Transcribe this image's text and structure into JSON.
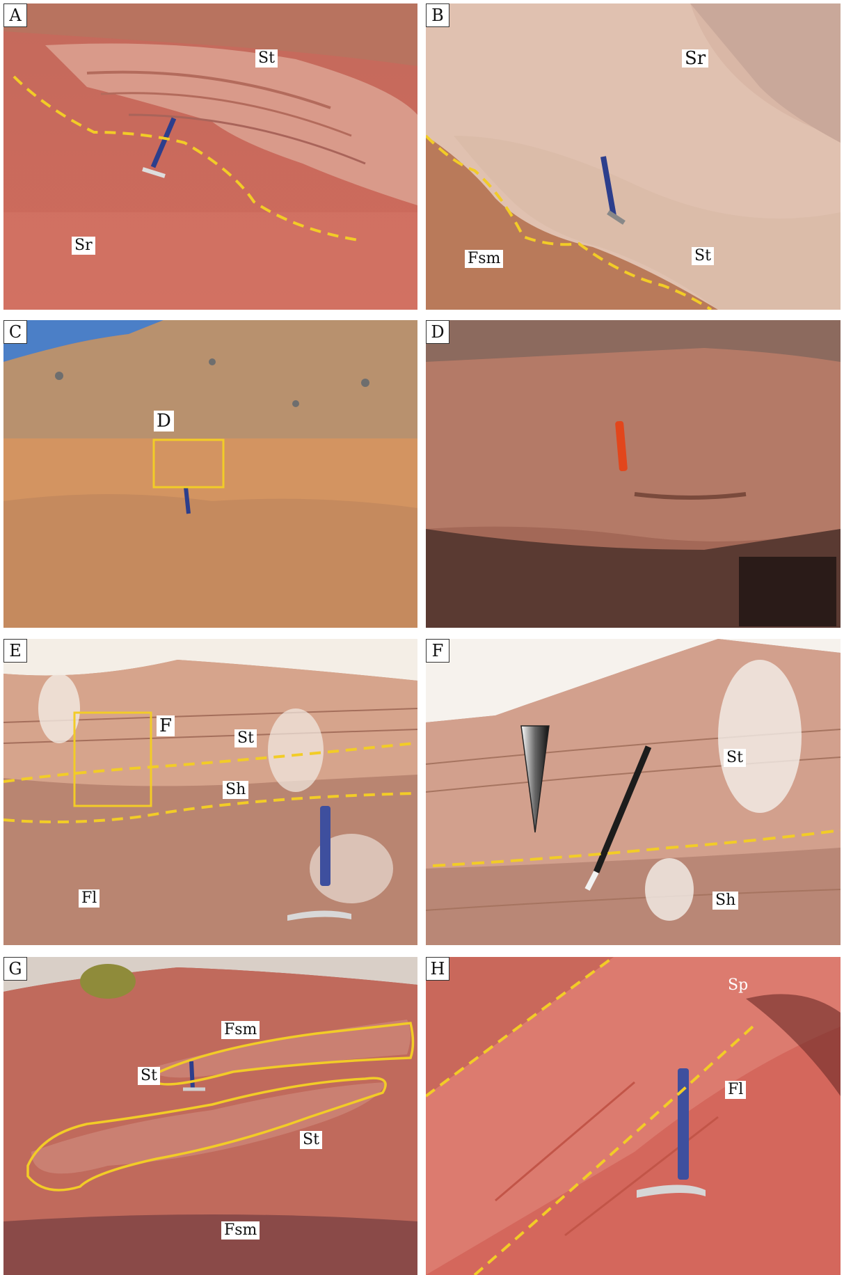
{
  "colors": {
    "boundary_dashed": "#f2cc27",
    "highlight_box": "#f2cc27",
    "label_background": "#ffffff"
  },
  "panels": [
    {
      "id": "A",
      "label": "A",
      "units": [
        "St",
        "Sr"
      ]
    },
    {
      "id": "B",
      "label": "B",
      "units": [
        "Sr",
        "Fsm",
        "St"
      ]
    },
    {
      "id": "C",
      "label": "C",
      "box_label": "D"
    },
    {
      "id": "D",
      "label": "D"
    },
    {
      "id": "E",
      "label": "E",
      "box_label": "F",
      "units": [
        "St",
        "Sh",
        "Fl"
      ]
    },
    {
      "id": "F",
      "label": "F",
      "units": [
        "St",
        "Sh"
      ]
    },
    {
      "id": "G",
      "label": "G",
      "units": [
        "Fsm",
        "St",
        "St",
        "Fsm"
      ]
    },
    {
      "id": "H",
      "label": "H",
      "units": [
        "Sp",
        "Fl"
      ]
    }
  ]
}
